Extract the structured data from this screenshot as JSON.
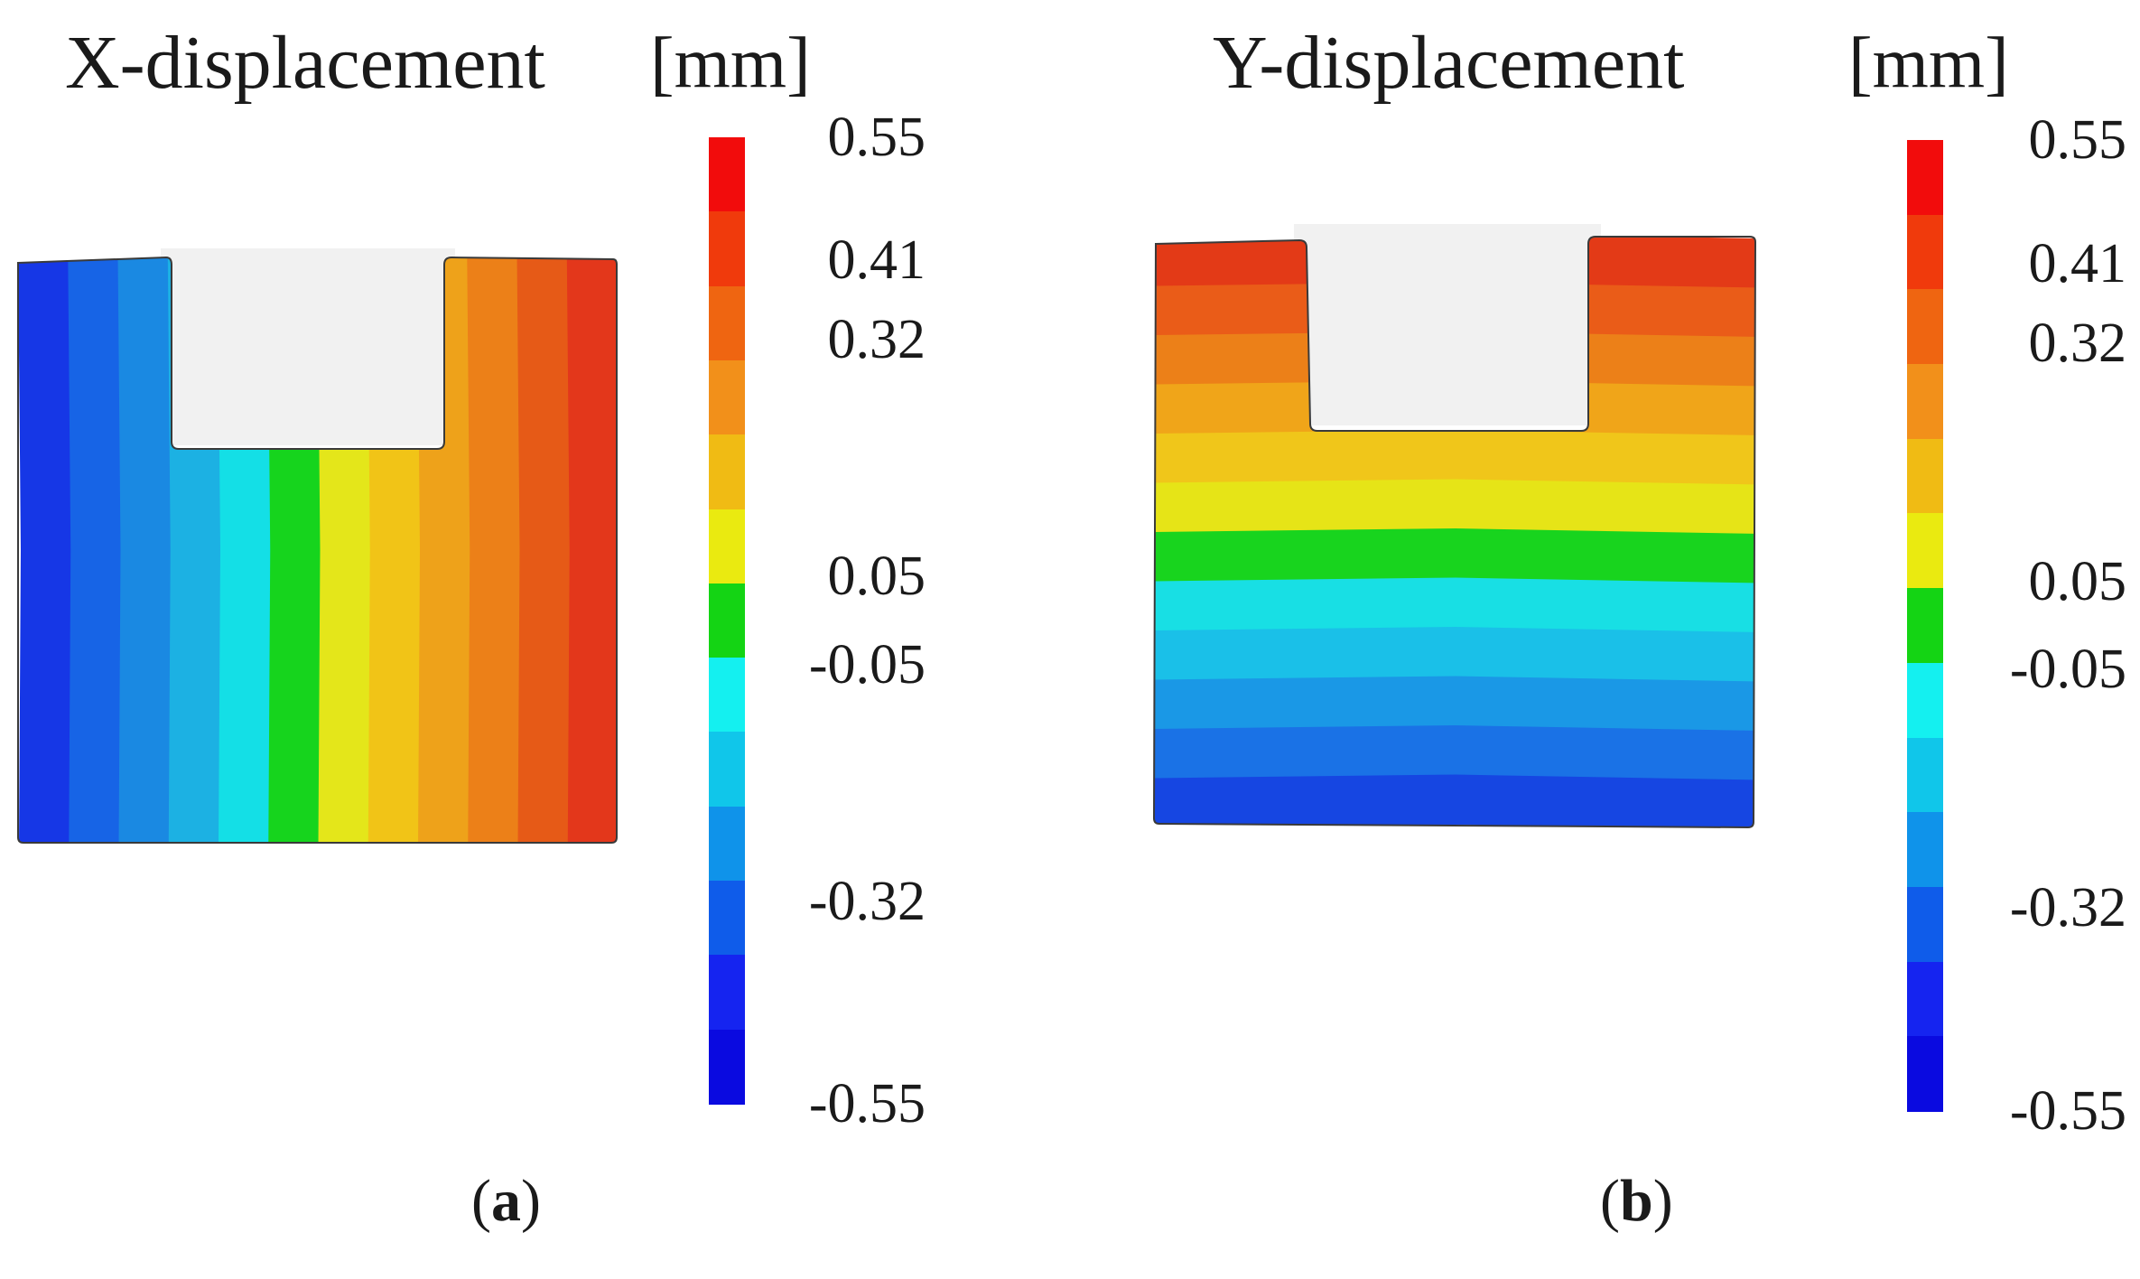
{
  "panels": [
    {
      "id": "a",
      "title": "X-displacement",
      "unit": "[mm]",
      "caption_open": "(",
      "caption_letter": "a",
      "caption_close": ")",
      "field_direction": "horizontal"
    },
    {
      "id": "b",
      "title": "Y-displacement",
      "unit": "[mm]",
      "caption_open": "(",
      "caption_letter": "b",
      "caption_close": ")",
      "field_direction": "vertical"
    }
  ],
  "legend": {
    "tick_labels": [
      "0.55",
      "0.41",
      "0.32",
      "0.05",
      "-0.05",
      "-0.32",
      "-0.55"
    ],
    "tick_values": [
      0.55,
      0.41,
      0.32,
      0.05,
      -0.05,
      -0.32,
      -0.55
    ],
    "range": [
      -0.55,
      0.55
    ],
    "levels": 12,
    "colors_top_to_bottom": [
      "#f20c0c",
      "#f03a0c",
      "#ef6511",
      "#f2901a",
      "#f0bb14",
      "#eaea10",
      "#14d414",
      "#14f0f0",
      "#10c6ea",
      "#0f93ea",
      "#0f5cea",
      "#1524f0",
      "#0a0ae0"
    ]
  },
  "contour_colors": {
    "x_left_to_right": [
      "#1637e6",
      "#1764e6",
      "#1a89e2",
      "#1cb1e3",
      "#14dfe6",
      "#16d41d",
      "#e4e61a",
      "#f1c417",
      "#eea21a",
      "#ec8018",
      "#e65a17",
      "#e3371b"
    ],
    "y_top_to_bottom": [
      "#e33a17",
      "#ea5c18",
      "#ec8018",
      "#f0a519",
      "#f0c61a",
      "#e6e417",
      "#18d41e",
      "#18dfe4",
      "#1ac0e8",
      "#1a98e6",
      "#1a72e6",
      "#1646e2"
    ]
  },
  "background_colors": {
    "slot": "#f1f1f1",
    "outline": "#3a3a3a"
  }
}
